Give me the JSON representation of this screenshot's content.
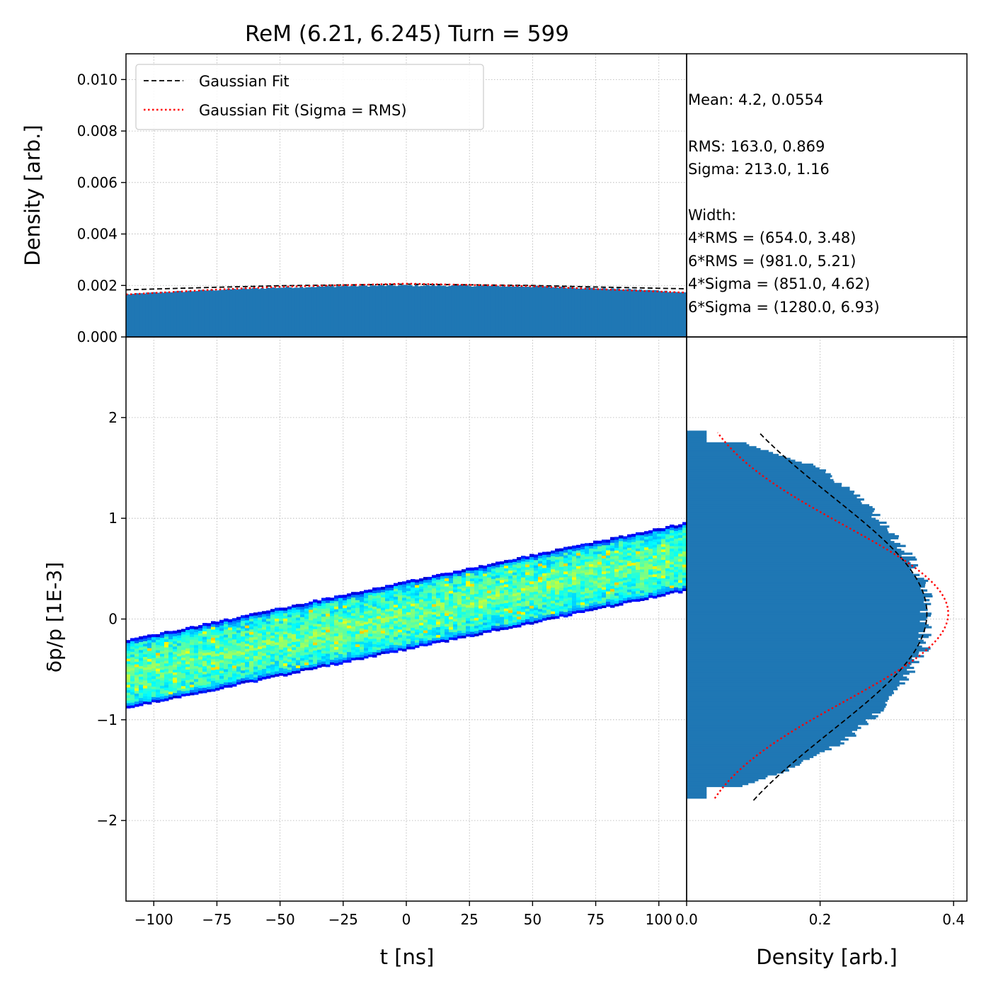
{
  "title": "ReM (6.21, 6.245) Turn = 599",
  "colors": {
    "histogram": "#1f77b4",
    "gaussian_fit": "#000000",
    "gaussian_fit_rms": "#ff0000"
  },
  "legend": {
    "placement": "upper-left of top panel",
    "entries": [
      {
        "label": "Gaussian Fit",
        "style": "dashed",
        "color": "#000000"
      },
      {
        "label": "Gaussian Fit (Sigma = RMS)",
        "style": "dotted",
        "color": "#ff0000"
      }
    ]
  },
  "stats": {
    "mean": "Mean: 4.2, 0.0554",
    "rms": "RMS: 163.0, 0.869",
    "sigma": "Sigma: 213.0, 1.16",
    "width_header": "Width:",
    "rms4": "4*RMS = (654.0, 3.48)",
    "rms6": "6*RMS = (981.0, 5.21)",
    "sigma4": "4*Sigma = (851.0, 4.62)",
    "sigma6": "6*Sigma = (1280.0, 6.93)"
  },
  "chart_data": [
    {
      "id": "top-histogram",
      "type": "bar",
      "description_of_axes": "time profile histogram",
      "xlim": [
        -111,
        111
      ],
      "ylim": [
        0,
        0.011
      ],
      "ylabel": "Density [arb.]",
      "yticks": [
        "0.000",
        "0.002",
        "0.004",
        "0.006",
        "0.008",
        "0.010"
      ],
      "ytick_values": [
        0,
        0.002,
        0.004,
        0.006,
        0.008,
        0.01
      ],
      "x": [
        -111,
        -100,
        -75,
        -50,
        -25,
        0,
        25,
        50,
        75,
        100,
        111
      ],
      "values": [
        0.00165,
        0.00172,
        0.00183,
        0.00192,
        0.00198,
        0.002,
        0.00199,
        0.00196,
        0.00189,
        0.0018,
        0.00172
      ],
      "gaussian_fit": {
        "x": [
          -111,
          -75,
          -50,
          0,
          50,
          75,
          111
        ],
        "y": [
          0.00183,
          0.00193,
          0.00199,
          0.00205,
          0.002,
          0.00194,
          0.00187
        ]
      },
      "gaussian_fit_rms": {
        "x": [
          -111,
          -75,
          -50,
          0,
          50,
          75,
          111
        ],
        "y": [
          0.00165,
          0.00184,
          0.00195,
          0.00207,
          0.00197,
          0.00186,
          0.00172
        ]
      },
      "grid": true
    },
    {
      "id": "phase-space",
      "type": "heatmap",
      "xlim": [
        -111,
        111
      ],
      "ylim": [
        -2.8,
        2.8
      ],
      "xlabel": "t [ns]",
      "ylabel": "δp/p [1E-3]",
      "xticks": [
        "−100",
        "−75",
        "−50",
        "−25",
        "0",
        "25",
        "50",
        "75",
        "100"
      ],
      "xtick_values": [
        -100,
        -75,
        -50,
        -25,
        0,
        25,
        50,
        75,
        100
      ],
      "yticks": [
        "−2",
        "−1",
        "0",
        "1",
        "2"
      ],
      "ytick_values": [
        -2,
        -1,
        0,
        1,
        2
      ],
      "band": {
        "x": [
          -111,
          111
        ],
        "center": [
          -0.55,
          0.62
        ],
        "half_width": 0.34
      },
      "colormap": "jet",
      "grid": true
    },
    {
      "id": "side-histogram",
      "type": "bar",
      "orientation": "horizontal",
      "xlim": [
        0,
        0.42
      ],
      "ylim": [
        -2.8,
        2.8
      ],
      "xlabel": "Density [arb.]",
      "xticks": [
        "0.0",
        "0.2",
        "0.4"
      ],
      "xtick_values": [
        0.0,
        0.2,
        0.4
      ],
      "y": [
        -1.78,
        -1.5,
        -1.2,
        -0.9,
        -0.6,
        -0.3,
        0.0,
        0.3,
        0.6,
        0.9,
        1.2,
        1.5,
        1.87
      ],
      "values": [
        0.03,
        0.15,
        0.24,
        0.29,
        0.33,
        0.355,
        0.36,
        0.36,
        0.335,
        0.3,
        0.26,
        0.2,
        0.03
      ],
      "gaussian_fit": {
        "mu": 0.0554,
        "sigma": 1.16,
        "amp": 0.36,
        "y_range": [
          -1.8,
          1.85
        ]
      },
      "gaussian_fit_rms": {
        "mu": 0.0554,
        "sigma": 0.869,
        "amp": 0.392,
        "y_range": [
          -1.78,
          1.85
        ]
      },
      "grid": true
    }
  ]
}
